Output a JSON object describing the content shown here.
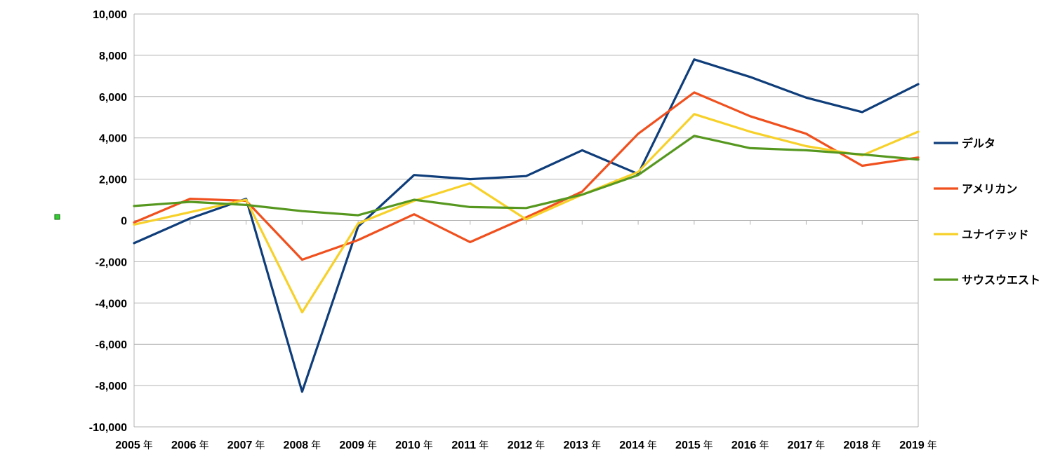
{
  "chart_data": {
    "type": "line",
    "title": "",
    "xlabel": "",
    "ylabel": "",
    "categories": [
      "2005",
      "2006",
      "2007",
      "2008",
      "2009",
      "2010",
      "2011",
      "2012",
      "2013",
      "2014",
      "2015",
      "2016",
      "2017",
      "2018",
      "2019"
    ],
    "category_suffix": "年",
    "ylim": [
      -10000,
      10000
    ],
    "yticks": [
      10000,
      8000,
      6000,
      4000,
      2000,
      0,
      -2000,
      -4000,
      -6000,
      -8000,
      -10000
    ],
    "ytick_labels": [
      "10,000",
      "8,000",
      "6,000",
      "4,000",
      "2,000",
      "0",
      "-2,000",
      "-4,000",
      "-6,000",
      "-8,000",
      "-10,000"
    ],
    "grid": "horizontal",
    "legend_position": "right",
    "series": [
      {
        "name": "デルタ",
        "color": "#0e3d7a",
        "values": [
          -1100,
          100,
          1050,
          -8300,
          -300,
          2200,
          2000,
          2150,
          3400,
          2250,
          7800,
          6950,
          5950,
          5250,
          6600
        ]
      },
      {
        "name": "アメリカン",
        "color": "#f0501e",
        "values": [
          -100,
          1050,
          950,
          -1900,
          -950,
          300,
          -1050,
          150,
          1400,
          4200,
          6200,
          5050,
          4200,
          2650,
          3050
        ]
      },
      {
        "name": "ユナイテッド",
        "color": "#f7d12a",
        "values": [
          -200,
          400,
          1000,
          -4450,
          -150,
          950,
          1800,
          50,
          1250,
          2350,
          5150,
          4300,
          3600,
          3150,
          4300
        ]
      },
      {
        "name": "サウスウエスト",
        "color": "#56981f",
        "values": [
          700,
          900,
          750,
          450,
          250,
          1000,
          650,
          600,
          1250,
          2200,
          4100,
          3500,
          3400,
          3200,
          2950
        ]
      }
    ]
  }
}
